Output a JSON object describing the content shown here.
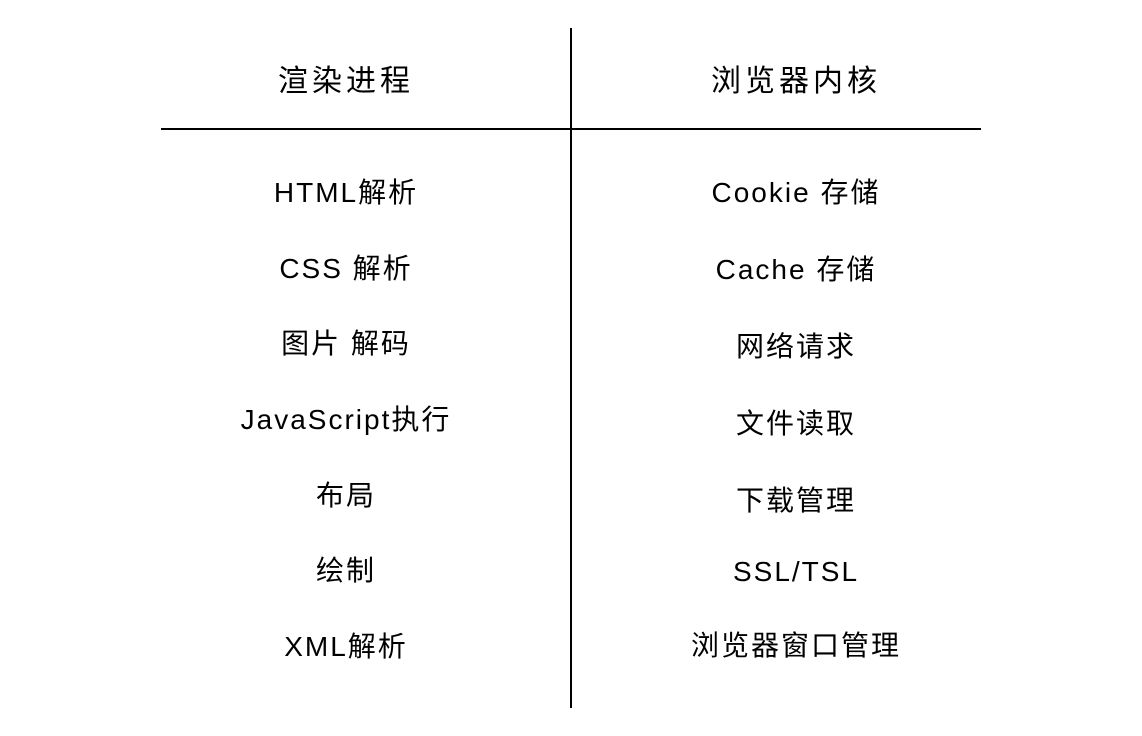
{
  "type": "two-column-comparison",
  "background_color": "#ffffff",
  "line_color": "#000000",
  "line_width": 2,
  "text_color": "#000000",
  "header_fontsize": 30,
  "item_fontsize": 28,
  "font_family": "handwritten",
  "columns": {
    "left": {
      "header": "渲染进程",
      "items": [
        "HTML解析",
        "CSS 解析",
        "图片 解码",
        "JavaScript执行",
        "布局",
        "绘制",
        "XML解析"
      ]
    },
    "right": {
      "header": "浏览器内核",
      "items": [
        "Cookie 存储",
        "Cache 存储",
        "网络请求",
        "文件读取",
        "下载管理",
        "SSL/TSL",
        "浏览器窗口管理"
      ]
    }
  }
}
